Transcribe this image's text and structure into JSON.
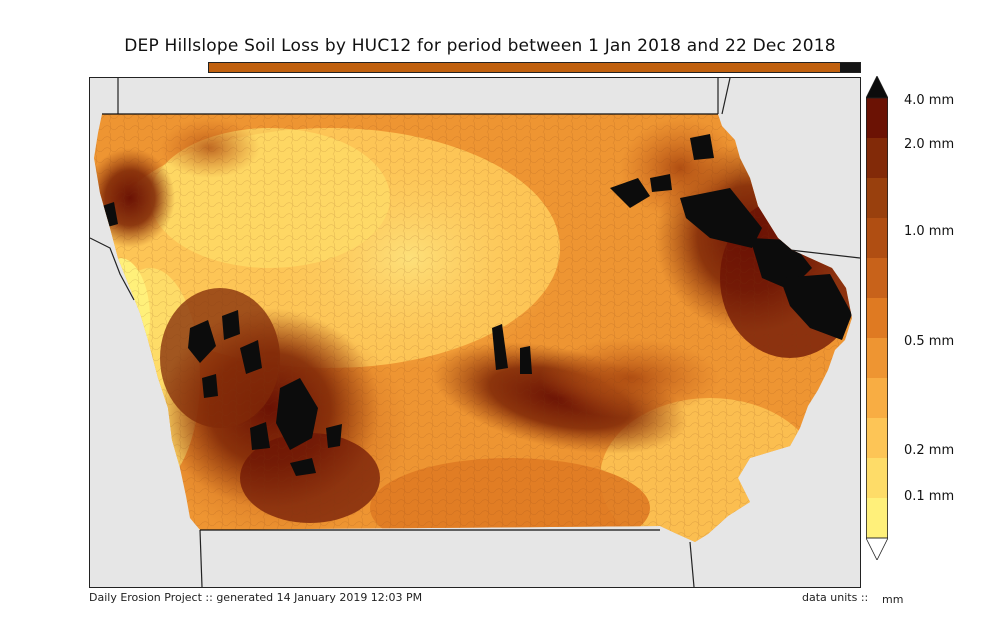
{
  "title": "DEP Hillslope Soil Loss by HUC12 for period between 1 Jan 2018 and 22 Dec 2018",
  "progress": {
    "fraction": 0.97,
    "fill_color": "#c0600e",
    "remainder_color": "#151515"
  },
  "colorbar": {
    "labels": [
      "4.0 mm",
      "2.0 mm",
      "1.0 mm",
      "0.5 mm",
      "0.2 mm",
      "0.1 mm"
    ],
    "levels": [
      0.1,
      0.2,
      0.5,
      1.0,
      2.0,
      4.0
    ],
    "colors": [
      "#fff07a",
      "#fedc68",
      "#fdc556",
      "#f8ad43",
      "#ee9532",
      "#df7a22",
      "#c8621a",
      "#b04e12",
      "#99400d",
      "#822a08",
      "#6b1204"
    ],
    "over_color": "#0c0c0c",
    "under_color": "#ffffff"
  },
  "map": {
    "background": "#e6e6e6",
    "state": "Iowa",
    "no_data_color": "#0c0c0c"
  },
  "footer": {
    "credit": "Daily Erosion Project :: generated 14 January 2019 12:03 PM",
    "units_label": "data units ::",
    "units": "mm"
  }
}
